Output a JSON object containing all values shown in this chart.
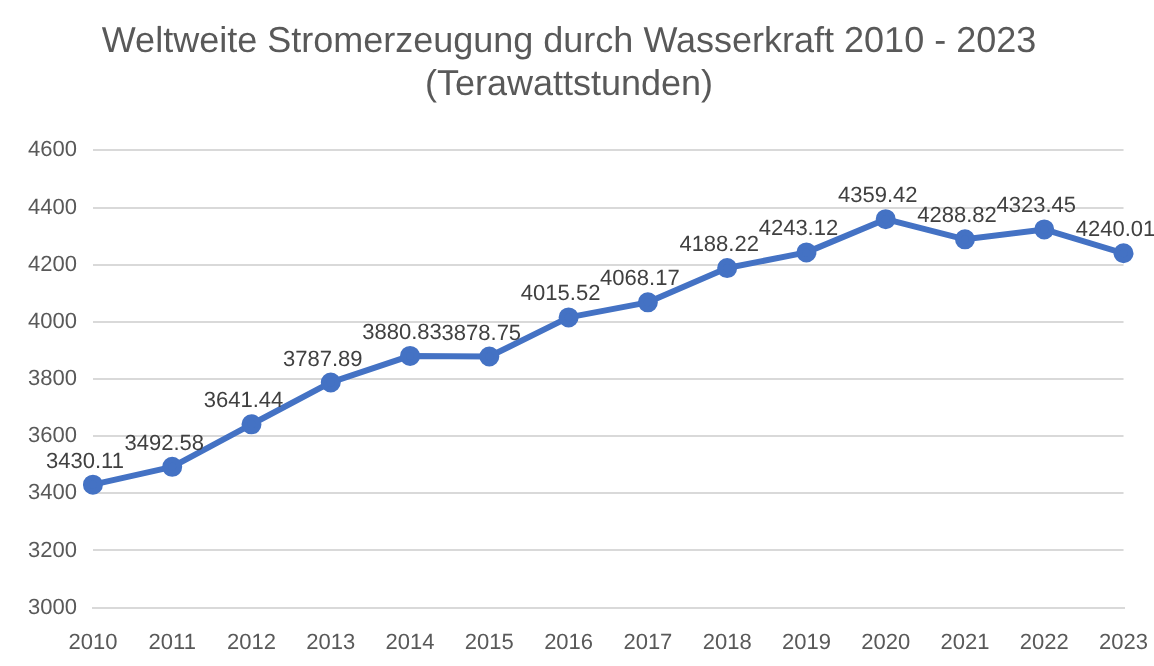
{
  "chart_data": {
    "type": "line",
    "title": "Weltweite Stromerzeugung durch Wasserkraft 2010 - 2023\n(Terawattstunden)",
    "categories": [
      "2010",
      "2011",
      "2012",
      "2013",
      "2014",
      "2015",
      "2016",
      "2017",
      "2018",
      "2019",
      "2020",
      "2021",
      "2022",
      "2023"
    ],
    "series": [
      {
        "color": "#4472c4",
        "values": [
          3430.11,
          3492.58,
          3641.44,
          3787.89,
          3880.83,
          3878.75,
          4015.52,
          4068.17,
          4188.22,
          4243.12,
          4359.42,
          4288.82,
          4323.45,
          4240.01
        ]
      }
    ],
    "ylim": [
      3000,
      4600
    ],
    "yticks": [
      3000,
      3200,
      3400,
      3600,
      3800,
      4000,
      4200,
      4400,
      4600
    ],
    "grid": "y",
    "legend": false,
    "marker": "circle",
    "line_style": "solid",
    "data_labels": true
  }
}
